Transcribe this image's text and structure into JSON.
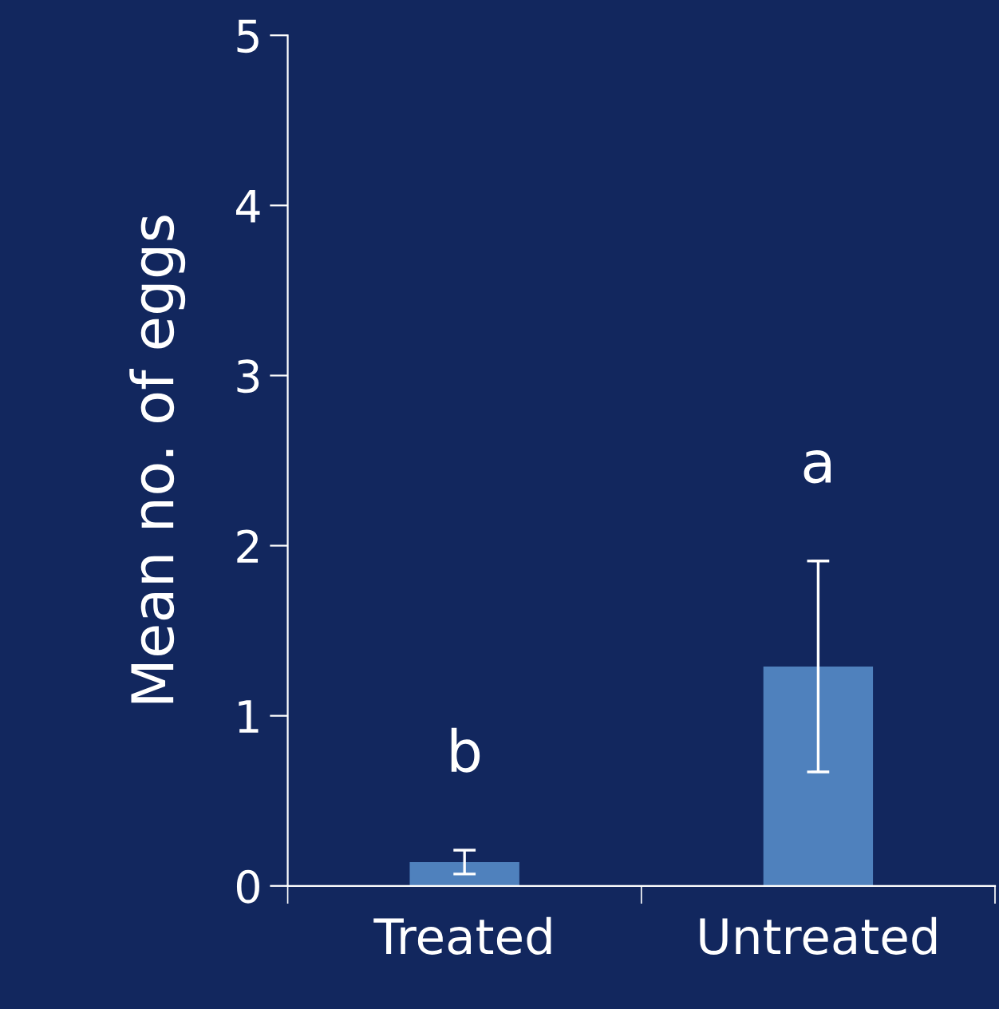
{
  "chart_data": {
    "type": "bar",
    "ylabel": "Mean no. of eggs",
    "categories": [
      "Treated",
      "Untreated"
    ],
    "values": [
      0.14,
      1.29
    ],
    "errors": [
      0.07,
      0.62
    ],
    "color": "#4f81bd",
    "ylim": [
      0,
      5
    ],
    "yticks": [
      0,
      1,
      2,
      3,
      4,
      5
    ],
    "grid": false,
    "legend": false,
    "annotations": [
      "b",
      "a"
    ]
  }
}
